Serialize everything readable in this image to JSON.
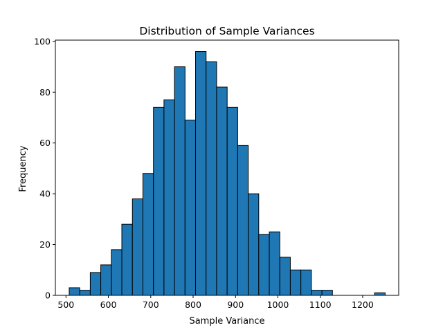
{
  "chart_data": {
    "type": "bar",
    "title": "Distribution of Sample Variances",
    "xlabel": "Sample Variance",
    "ylabel": "Frequency",
    "xlim": [
      475,
      1285
    ],
    "ylim": [
      0,
      100.5
    ],
    "xticks": [
      500,
      600,
      700,
      800,
      900,
      1000,
      1100,
      1200
    ],
    "yticks": [
      0,
      20,
      40,
      60,
      80,
      100
    ],
    "grid": false,
    "bar_color": "#1f77b4",
    "edge_color": "#000000",
    "bins": [
      {
        "x0": 507.6,
        "x1": 532.4,
        "count": 3
      },
      {
        "x0": 532.4,
        "x1": 557.3,
        "count": 2
      },
      {
        "x0": 557.3,
        "x1": 582.1,
        "count": 9
      },
      {
        "x0": 582.1,
        "x1": 607.0,
        "count": 12
      },
      {
        "x0": 607.0,
        "x1": 631.8,
        "count": 18
      },
      {
        "x0": 631.8,
        "x1": 656.7,
        "count": 28
      },
      {
        "x0": 656.7,
        "x1": 681.5,
        "count": 38
      },
      {
        "x0": 681.5,
        "x1": 706.4,
        "count": 48
      },
      {
        "x0": 706.4,
        "x1": 731.2,
        "count": 74
      },
      {
        "x0": 731.2,
        "x1": 756.0,
        "count": 77
      },
      {
        "x0": 756.0,
        "x1": 780.9,
        "count": 90
      },
      {
        "x0": 780.9,
        "x1": 805.7,
        "count": 69
      },
      {
        "x0": 805.7,
        "x1": 830.6,
        "count": 96
      },
      {
        "x0": 830.6,
        "x1": 855.4,
        "count": 92
      },
      {
        "x0": 855.4,
        "x1": 880.3,
        "count": 82
      },
      {
        "x0": 880.3,
        "x1": 905.1,
        "count": 74
      },
      {
        "x0": 905.1,
        "x1": 930.0,
        "count": 59
      },
      {
        "x0": 930.0,
        "x1": 954.8,
        "count": 40
      },
      {
        "x0": 954.8,
        "x1": 979.7,
        "count": 24
      },
      {
        "x0": 979.7,
        "x1": 1004.5,
        "count": 25
      },
      {
        "x0": 1004.5,
        "x1": 1029.3,
        "count": 15
      },
      {
        "x0": 1029.3,
        "x1": 1054.2,
        "count": 10
      },
      {
        "x0": 1054.2,
        "x1": 1079.0,
        "count": 10
      },
      {
        "x0": 1079.0,
        "x1": 1103.9,
        "count": 2
      },
      {
        "x0": 1103.9,
        "x1": 1128.7,
        "count": 2
      },
      {
        "x0": 1128.7,
        "x1": 1153.6,
        "count": 0
      },
      {
        "x0": 1153.6,
        "x1": 1178.4,
        "count": 0
      },
      {
        "x0": 1178.4,
        "x1": 1203.3,
        "count": 0
      },
      {
        "x0": 1203.3,
        "x1": 1228.1,
        "count": 0
      },
      {
        "x0": 1228.1,
        "x1": 1253.0,
        "count": 1
      }
    ]
  }
}
